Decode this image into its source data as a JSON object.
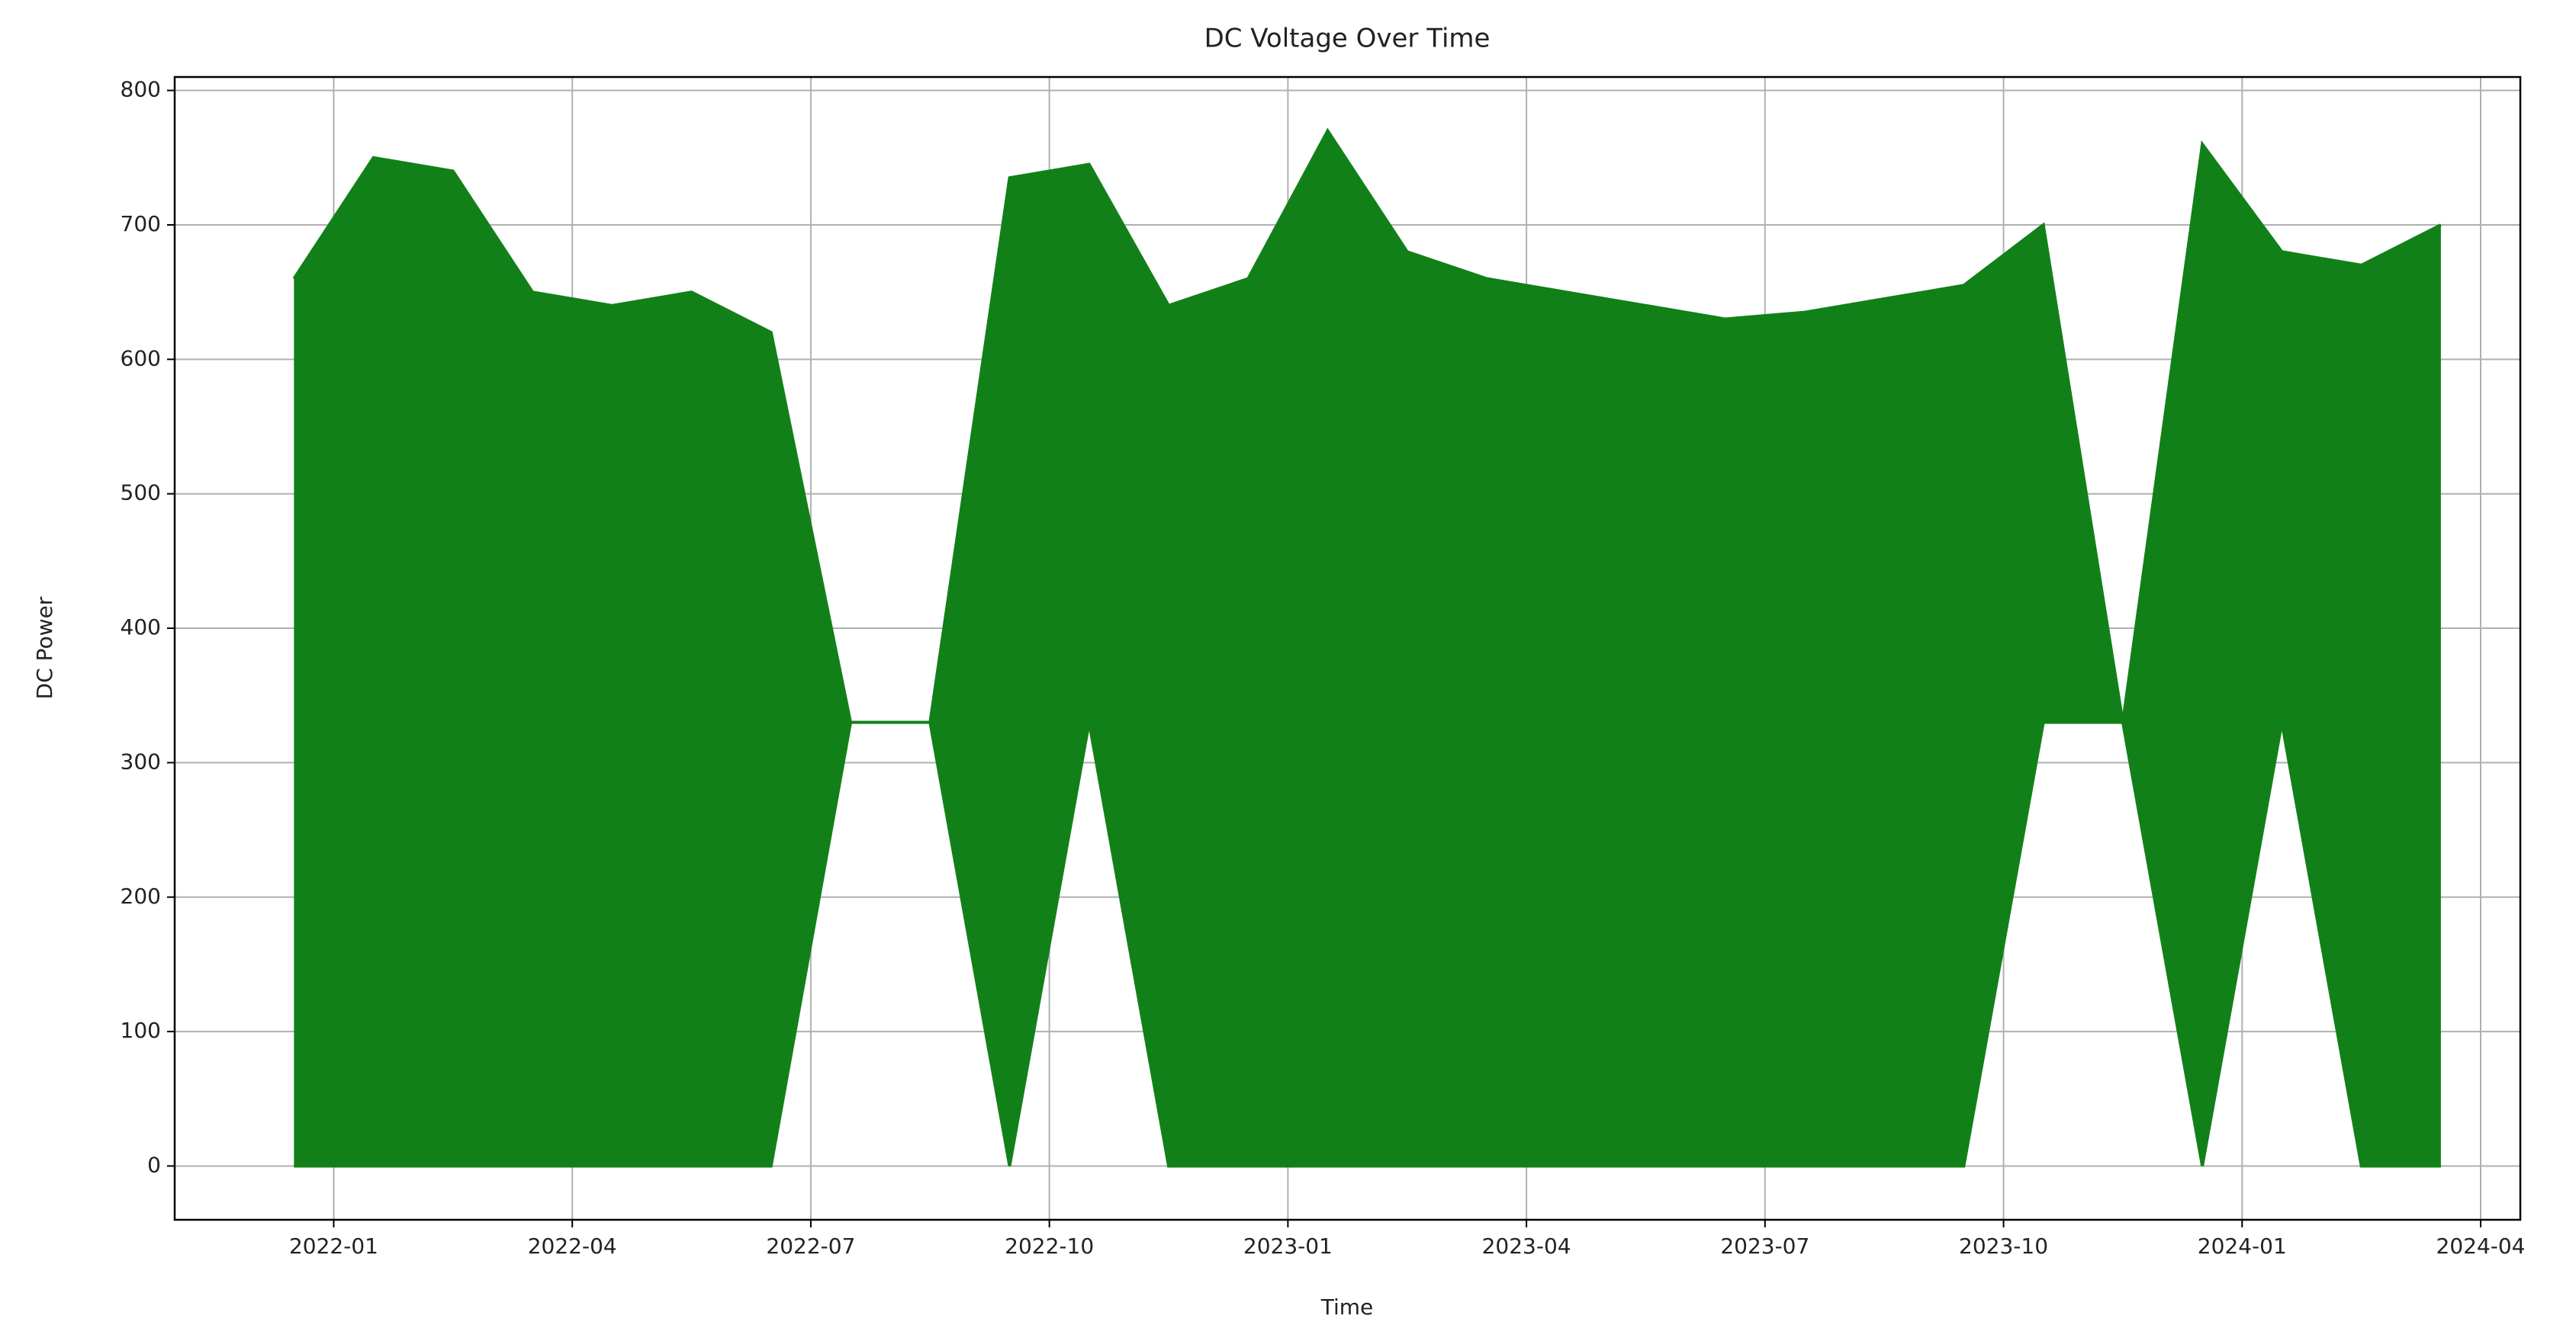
{
  "chart_data": {
    "type": "line",
    "title": "DC Voltage Over Time",
    "x_label": "Time",
    "y_label": "DC Power",
    "color": "#128019",
    "grid": true,
    "x": [
      "2021-12",
      "2022-01",
      "2022-02",
      "2022-03",
      "2022-04",
      "2022-05",
      "2022-06",
      "2022-07",
      "2022-08",
      "2022-09",
      "2022-10",
      "2022-11",
      "2022-12",
      "2023-01",
      "2023-02",
      "2023-03",
      "2023-04",
      "2023-05",
      "2023-06",
      "2023-07",
      "2023-08",
      "2023-09",
      "2023-10",
      "2023-11",
      "2023-12",
      "2024-01",
      "2024-02",
      "2024-03"
    ],
    "values": [
      660,
      750,
      740,
      650,
      640,
      650,
      620,
      330,
      330,
      735,
      745,
      640,
      660,
      770,
      680,
      660,
      650,
      640,
      630,
      635,
      645,
      655,
      700,
      330,
      760,
      680,
      670,
      700
    ],
    "lower": [
      0,
      0,
      0,
      0,
      0,
      0,
      0,
      330,
      330,
      0,
      330,
      0,
      0,
      0,
      0,
      0,
      0,
      0,
      0,
      0,
      0,
      0,
      330,
      330,
      0,
      330,
      0,
      0
    ],
    "xlim": [
      "2021-11",
      "2024-04"
    ],
    "xticks": [
      "2022-01",
      "2022-04",
      "2022-07",
      "2022-10",
      "2023-01",
      "2023-04",
      "2023-07",
      "2023-10",
      "2024-01",
      "2024-04"
    ],
    "ylim": [
      -40,
      810
    ],
    "yticks": [
      0,
      100,
      200,
      300,
      400,
      500,
      600,
      700,
      800
    ]
  }
}
